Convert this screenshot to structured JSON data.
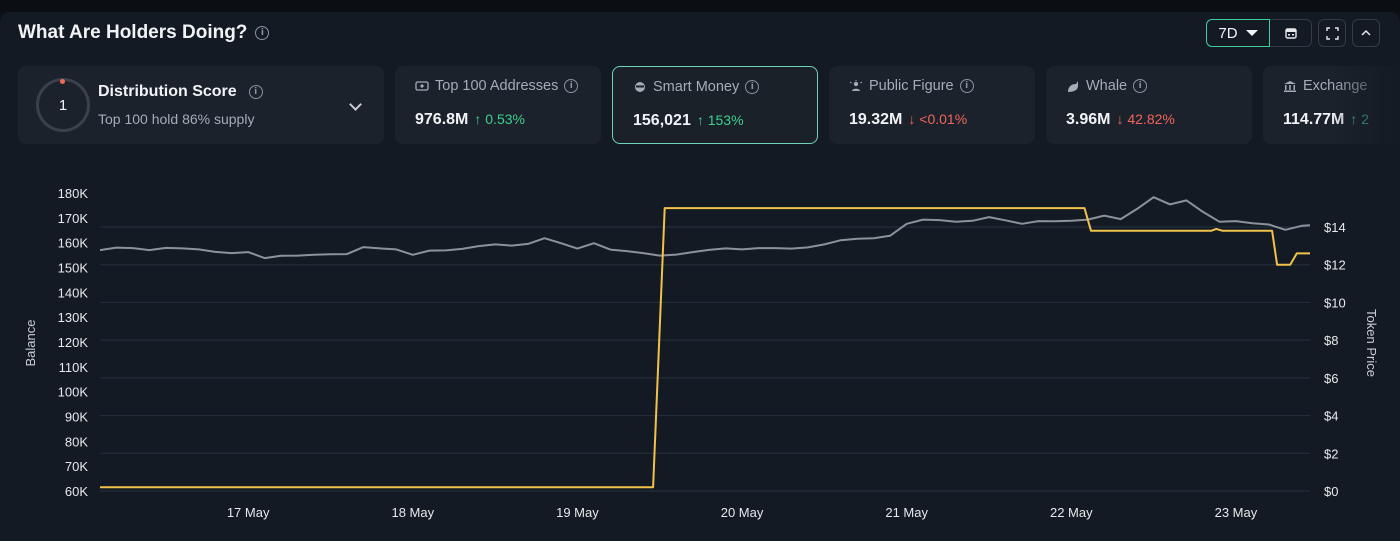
{
  "header": {
    "title": "What Are Holders Doing?"
  },
  "controls": {
    "range_label": "7D"
  },
  "distribution": {
    "score": "1",
    "title": "Distribution Score",
    "subtitle": "Top 100 hold 86% supply"
  },
  "cards": [
    {
      "label": "Top 100 Addresses",
      "value": "976.8M",
      "change": "0.53%",
      "direction": "up",
      "icon": "wallet-icon"
    },
    {
      "label": "Smart Money",
      "value": "156,021",
      "change": "153%",
      "direction": "up",
      "icon": "smart-money-icon"
    },
    {
      "label": "Public Figure",
      "value": "19.32M",
      "change": "<0.01%",
      "direction": "down",
      "icon": "public-figure-icon"
    },
    {
      "label": "Whale",
      "value": "3.96M",
      "change": "42.82%",
      "direction": "down",
      "icon": "whale-icon"
    },
    {
      "label": "Exchange",
      "value": "114.77M",
      "change": "2",
      "direction": "up",
      "icon": "exchange-icon"
    }
  ],
  "colors": {
    "accent": "#3fcf99",
    "up": "#3fcf8e",
    "down": "#f0655a",
    "balance_line": "#8b929c",
    "price_line": "#f0c24b"
  },
  "chart_data": {
    "type": "line",
    "xlabel": "",
    "ylabel_left": "Balance",
    "ylabel_right": "Token Price",
    "x_ticks": [
      "17 May",
      "18 May",
      "19 May",
      "20 May",
      "21 May",
      "22 May",
      "23 May"
    ],
    "x_range_days": [
      16.1,
      23.45
    ],
    "y_left_ticks": [
      "180K",
      "170K",
      "160K",
      "150K",
      "140K",
      "130K",
      "120K",
      "110K",
      "100K",
      "90K",
      "80K",
      "70K",
      "60K"
    ],
    "y_left_range": [
      60000,
      180000
    ],
    "y_right_ticks": [
      "$14",
      "$12",
      "$10",
      "$8",
      "$6",
      "$4",
      "$2",
      "$0"
    ],
    "y_right_range": [
      0,
      14
    ],
    "grid": true,
    "series": [
      {
        "axis": "left",
        "points": [
          [
            16.1,
            157000
          ],
          [
            16.2,
            158000
          ],
          [
            16.3,
            157800
          ],
          [
            16.4,
            157000
          ],
          [
            16.5,
            157900
          ],
          [
            16.6,
            157700
          ],
          [
            16.7,
            157300
          ],
          [
            16.8,
            156300
          ],
          [
            16.9,
            155800
          ],
          [
            17.0,
            156200
          ],
          [
            17.1,
            153800
          ],
          [
            17.2,
            154700
          ],
          [
            17.3,
            154800
          ],
          [
            17.4,
            155100
          ],
          [
            17.5,
            155300
          ],
          [
            17.6,
            155400
          ],
          [
            17.7,
            158200
          ],
          [
            17.8,
            157700
          ],
          [
            17.9,
            157300
          ],
          [
            18.0,
            155100
          ],
          [
            18.1,
            156800
          ],
          [
            18.2,
            156900
          ],
          [
            18.3,
            157500
          ],
          [
            18.4,
            158600
          ],
          [
            18.5,
            159300
          ],
          [
            18.6,
            158800
          ],
          [
            18.7,
            159500
          ],
          [
            18.8,
            161800
          ],
          [
            18.9,
            159800
          ],
          [
            19.0,
            157600
          ],
          [
            19.1,
            159800
          ],
          [
            19.2,
            157200
          ],
          [
            19.3,
            156600
          ],
          [
            19.4,
            155800
          ],
          [
            19.5,
            154800
          ],
          [
            19.6,
            155200
          ],
          [
            19.7,
            156200
          ],
          [
            19.8,
            157100
          ],
          [
            19.9,
            157700
          ],
          [
            20.0,
            157300
          ],
          [
            20.1,
            157800
          ],
          [
            20.2,
            157800
          ],
          [
            20.3,
            157600
          ],
          [
            20.4,
            158100
          ],
          [
            20.5,
            159300
          ],
          [
            20.6,
            161000
          ],
          [
            20.7,
            161600
          ],
          [
            20.8,
            161800
          ],
          [
            20.9,
            162800
          ],
          [
            21.0,
            167600
          ],
          [
            21.1,
            169300
          ],
          [
            21.2,
            169100
          ],
          [
            21.3,
            168400
          ],
          [
            21.4,
            168800
          ],
          [
            21.5,
            170300
          ],
          [
            21.6,
            169000
          ],
          [
            21.7,
            167600
          ],
          [
            21.8,
            168700
          ],
          [
            21.9,
            168600
          ],
          [
            22.0,
            168800
          ],
          [
            22.1,
            169300
          ],
          [
            22.2,
            170900
          ],
          [
            22.3,
            169500
          ],
          [
            22.4,
            173600
          ],
          [
            22.5,
            178300
          ],
          [
            22.6,
            175400
          ],
          [
            22.7,
            177000
          ],
          [
            22.8,
            172400
          ],
          [
            22.9,
            168400
          ],
          [
            23.0,
            168700
          ],
          [
            23.1,
            167800
          ],
          [
            23.2,
            167300
          ],
          [
            23.3,
            165200
          ],
          [
            23.4,
            166800
          ],
          [
            23.45,
            167000
          ]
        ]
      },
      {
        "axis": "right",
        "points": [
          [
            16.1,
            0.2
          ],
          [
            19.46,
            0.2
          ],
          [
            19.53,
            15.0
          ],
          [
            22.08,
            15.0
          ],
          [
            22.12,
            13.8
          ],
          [
            22.85,
            13.8
          ],
          [
            22.88,
            13.9
          ],
          [
            22.92,
            13.8
          ],
          [
            23.22,
            13.8
          ],
          [
            23.25,
            12.0
          ],
          [
            23.33,
            12.0
          ],
          [
            23.37,
            12.6
          ],
          [
            23.45,
            12.6
          ]
        ]
      }
    ]
  }
}
